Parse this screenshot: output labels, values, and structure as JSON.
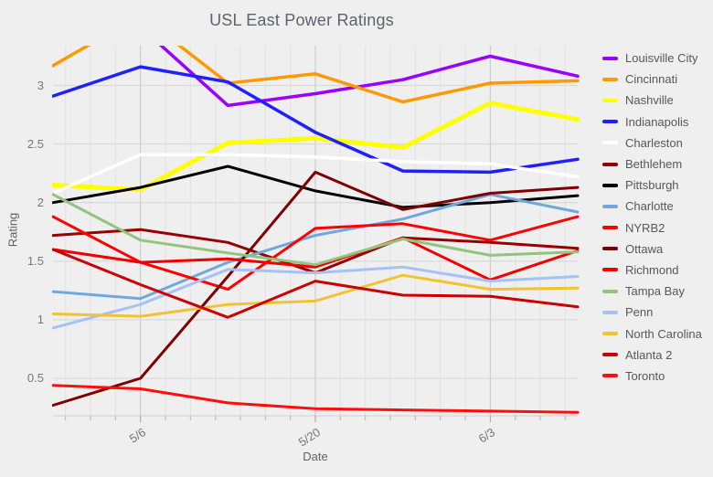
{
  "window": {
    "background": "#efefef"
  },
  "chart_data": {
    "type": "line",
    "title": "USL East Power Ratings",
    "xlabel": "Date",
    "ylabel": "Rating",
    "legend_position": "right",
    "grid": {
      "h_major_color": "#d4d4d4",
      "v_minor_color": "#e2e2e2",
      "v_major_color": "#c6c6c6",
      "axis_line_color": "#cfcfcf",
      "tick_color": "#b5b5b5"
    },
    "x_point_count": 7,
    "x_total_days": 42,
    "x_ticks": [
      {
        "label": "5/6",
        "day": 7
      },
      {
        "label": "5/20",
        "day": 21
      },
      {
        "label": "6/3",
        "day": 35
      }
    ],
    "x_minor_grid_days": [
      1,
      3,
      5,
      9,
      11,
      13,
      15,
      17,
      19,
      23,
      25,
      27,
      29,
      31,
      33,
      37,
      39,
      41
    ],
    "y_ticks": [
      0.5,
      1,
      1.5,
      2,
      2.5,
      3
    ],
    "y_range": [
      0.18,
      3.34
    ],
    "series": [
      {
        "name": "Louisville City",
        "color": "#9900ff",
        "width": 3.5,
        "values": [
          3.62,
          3.5,
          2.83,
          2.93,
          3.05,
          3.25,
          3.08
        ]
      },
      {
        "name": "Cincinnati",
        "color": "#ff9900",
        "width": 3.5,
        "values": [
          3.17,
          3.6,
          3.02,
          3.1,
          2.86,
          3.02,
          3.04
        ]
      },
      {
        "name": "Nashville",
        "color": "#ffff00",
        "width": 5,
        "values": [
          2.15,
          2.11,
          2.51,
          2.55,
          2.47,
          2.85,
          2.71
        ]
      },
      {
        "name": "Indianapolis",
        "color": "#2020ff",
        "width": 3.5,
        "values": [
          2.91,
          3.16,
          3.03,
          2.6,
          2.27,
          2.26,
          2.37
        ]
      },
      {
        "name": "Charleston",
        "color": "#ffffff",
        "width": 3.5,
        "values": [
          2.08,
          2.41,
          2.41,
          2.39,
          2.35,
          2.33,
          2.22
        ]
      },
      {
        "name": "Bethlehem",
        "color": "#980000",
        "width": 3,
        "values": [
          1.72,
          1.77,
          1.66,
          1.4,
          1.7,
          1.66,
          1.61
        ]
      },
      {
        "name": "Pittsburgh",
        "color": "#000000",
        "width": 3,
        "values": [
          2.0,
          2.13,
          2.31,
          2.1,
          1.96,
          2.0,
          2.06
        ]
      },
      {
        "name": "Charlotte",
        "color": "#6fa8dc",
        "width": 3,
        "values": [
          1.24,
          1.18,
          1.49,
          1.72,
          1.86,
          2.07,
          1.92
        ]
      },
      {
        "name": "NYRB2",
        "color": "#ff0000",
        "width": 3,
        "values": [
          1.88,
          1.49,
          1.26,
          1.78,
          1.82,
          1.68,
          1.88
        ]
      },
      {
        "name": "Ottawa",
        "color": "#7f0000",
        "width": 3,
        "values": [
          0.27,
          0.5,
          1.37,
          2.26,
          1.94,
          2.08,
          2.13
        ]
      },
      {
        "name": "Richmond",
        "color": "#f10000",
        "width": 3,
        "values": [
          1.6,
          1.49,
          1.52,
          1.45,
          1.7,
          1.34,
          1.59
        ]
      },
      {
        "name": "Tampa Bay",
        "color": "#93c47d",
        "width": 3,
        "values": [
          2.07,
          1.68,
          1.57,
          1.47,
          1.69,
          1.55,
          1.58
        ]
      },
      {
        "name": "Penn",
        "color": "#a4c2f4",
        "width": 3,
        "values": [
          0.93,
          1.13,
          1.43,
          1.4,
          1.45,
          1.33,
          1.37
        ]
      },
      {
        "name": "North Carolina",
        "color": "#f1c232",
        "width": 3,
        "values": [
          1.05,
          1.03,
          1.13,
          1.16,
          1.38,
          1.26,
          1.27
        ]
      },
      {
        "name": "Atlanta 2",
        "color": "#cc0000",
        "width": 3,
        "values": [
          1.6,
          1.3,
          1.02,
          1.33,
          1.21,
          1.2,
          1.11
        ]
      },
      {
        "name": "Toronto",
        "color": "#ff0d0d",
        "width": 3,
        "values": [
          0.44,
          0.41,
          0.29,
          0.24,
          0.23,
          0.22,
          0.21
        ]
      }
    ]
  }
}
